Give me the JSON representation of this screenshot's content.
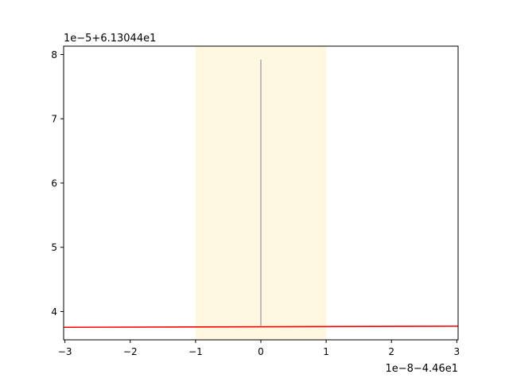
{
  "chart_data": {
    "type": "line",
    "title": "",
    "xlabel": "",
    "ylabel": "",
    "x_offset_text": "1e−8−4.46e1",
    "y_offset_text": "1e−5+6.13044e1",
    "xlim": [
      -3.02,
      3.02
    ],
    "ylim": [
      3.56,
      8.13
    ],
    "x_ticks": [
      -3,
      -2,
      -1,
      0,
      1,
      2,
      3
    ],
    "x_tick_labels": [
      "−3",
      "−2",
      "−1",
      "0",
      "1",
      "2",
      "3"
    ],
    "y_ticks": [
      4,
      5,
      6,
      7,
      8
    ],
    "y_tick_labels": [
      "4",
      "5",
      "6",
      "7",
      "8"
    ],
    "grid": false,
    "highlight_band": {
      "x": [
        -1,
        1
      ],
      "color": "#fff8e1"
    },
    "series": [
      {
        "x": [
          -3.02,
          3.02
        ],
        "y": [
          3.755,
          3.772
        ],
        "color": "#ff0000"
      },
      {
        "x": [
          0,
          0
        ],
        "y": [
          3.78,
          7.92
        ],
        "color": "#bdbdbd"
      }
    ]
  }
}
